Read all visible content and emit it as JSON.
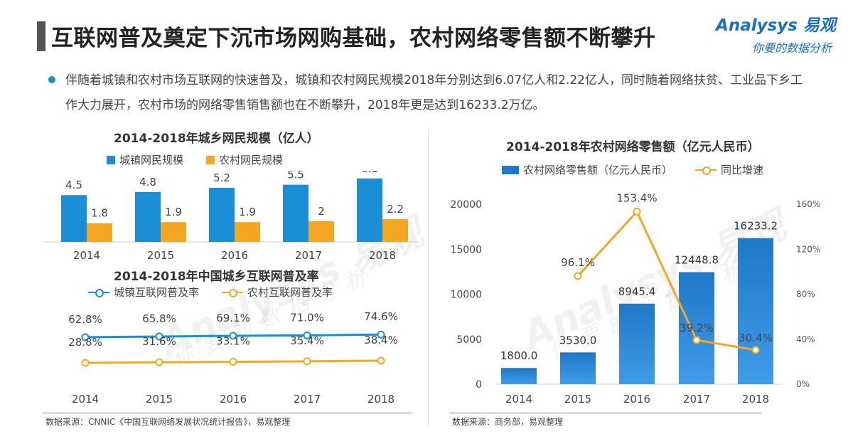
{
  "page": {
    "title": "互联网普及奠定下沉市场网购基础，农村网络零售额不断攀升",
    "bullet": "伴随着城镇和农村市场互联网的快速普及，城镇和农村网民规模2018年分别达到6.07亿人和2.22亿人，同时随着网络扶贫、工业品下乡工作大力展开，农村市场的网络零售销售额也在不断攀升，2018年更是达到16233.2万亿。"
  },
  "logo": {
    "main": "Analysys 易观",
    "sub": "你要的数据分析"
  },
  "watermark": {
    "main": "Analysys 易观",
    "sub": "你要的数据分析"
  },
  "colors": {
    "blue": "#1a8fd8",
    "orange": "#f5a623",
    "bar_dark": "#1f78c8",
    "bar_light": "#3f9ce8"
  },
  "sources": {
    "left": "数据来源：CNNIC《中国互联网络发展状况统计报告》，易观整理",
    "right": "数据来源：商务部，易观整理"
  },
  "chart_data": [
    {
      "id": "netizens",
      "type": "bar",
      "title": "2014-2018年城乡网民规模（亿人）",
      "categories": [
        "2014",
        "2015",
        "2016",
        "2017",
        "2018"
      ],
      "series": [
        {
          "name": "城镇网民规模",
          "values": [
            4.5,
            4.8,
            5.2,
            5.5,
            6.1
          ],
          "color": "#1a8fd8"
        },
        {
          "name": "农村网民规模",
          "values": [
            1.8,
            1.9,
            1.9,
            2.0,
            2.2
          ],
          "color": "#f5a623"
        }
      ],
      "ylim": [
        0,
        6.5
      ]
    },
    {
      "id": "penetration",
      "type": "line",
      "title": "2014-2018年中国城乡互联网普及率",
      "categories": [
        "2014",
        "2015",
        "2016",
        "2017",
        "2018"
      ],
      "series": [
        {
          "name": "城镇互联网普及率",
          "values": [
            62.8,
            65.8,
            69.1,
            71.0,
            74.6
          ],
          "labels": [
            "62.8%",
            "65.8%",
            "69.1%",
            "71.0%",
            "74.6%"
          ],
          "color": "#1a8fd8"
        },
        {
          "name": "农村互联网普及率",
          "values": [
            28.8,
            31.6,
            33.1,
            35.4,
            38.4
          ],
          "labels": [
            "28.8%",
            "31.6%",
            "33.1%",
            "35.4%",
            "38.4%"
          ],
          "color": "#f5a623"
        }
      ]
    },
    {
      "id": "rural_retail",
      "type": "bar",
      "title": "2014-2018年农村网络零售额（亿元人民币）",
      "categories": [
        "2014",
        "2015",
        "2016",
        "2017",
        "2018"
      ],
      "series": [
        {
          "name": "农村网络零售额（亿元人民币）",
          "values": [
            1800.0,
            3530.0,
            8945.4,
            12448.8,
            16233.2
          ],
          "labels": [
            "1800.0",
            "3530.0",
            "8945.4",
            "12448.8",
            "16233.2"
          ],
          "color": "#1f78c8",
          "axis": "left"
        },
        {
          "name": "同比增速",
          "values": [
            null,
            96.1,
            153.4,
            39.2,
            30.4
          ],
          "labels": [
            "",
            "96.1%",
            "153.4%",
            "39.2%",
            "30.4%"
          ],
          "color": "#f5a623",
          "axis": "right",
          "type": "line"
        }
      ],
      "ylim": [
        0,
        20000
      ],
      "yticks": [
        "0",
        "5000",
        "10000",
        "15000",
        "20000"
      ],
      "y2lim": [
        0,
        160
      ],
      "y2ticks": [
        "0%",
        "40%",
        "80%",
        "120%",
        "160%"
      ]
    }
  ]
}
